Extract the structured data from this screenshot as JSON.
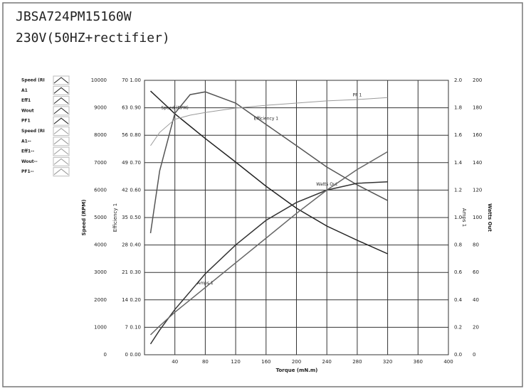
{
  "chart_data": {
    "type": "line",
    "title": "JBSA724PM15160W",
    "subtitle": "230V(50HZ+rectifier)",
    "xlabel": "Torque (mN.m)",
    "xlim": [
      0,
      400
    ],
    "xticks": [
      40,
      80,
      120,
      160,
      200,
      240,
      280,
      320,
      360,
      400
    ],
    "grid": true,
    "y_axes": [
      {
        "label": "Speed (RPM)",
        "ylim": [
          0,
          10000
        ],
        "yticks": [
          0,
          1000,
          2000,
          3000,
          4000,
          5000,
          6000,
          7000,
          8000,
          9000,
          10000
        ]
      },
      {
        "ylim": [
          0,
          70
        ],
        "yticks": [
          0,
          7,
          14,
          21,
          28,
          35,
          42,
          49,
          56,
          63,
          70
        ]
      },
      {
        "label": "Efficiency 1",
        "ylim": [
          0,
          1
        ],
        "yticks": [
          {
            "value": 0,
            "label": "0.00"
          },
          {
            "value": 0.1,
            "label": "0.10"
          },
          {
            "value": 0.2,
            "label": "0.20"
          },
          {
            "value": 0.3,
            "label": "0.30"
          },
          {
            "value": 0.4,
            "label": "0.40"
          },
          {
            "value": 0.5,
            "label": "0.50"
          },
          {
            "value": 0.6,
            "label": "0.60"
          },
          {
            "value": 0.7,
            "label": "0.70"
          },
          {
            "value": 0.8,
            "label": "0.80"
          },
          {
            "value": 0.9,
            "label": "0.90"
          },
          {
            "value": 1,
            "label": "1.00"
          }
        ]
      },
      {
        "label": "Amps 1",
        "ylim": [
          0,
          2
        ],
        "yticks": [
          {
            "value": 0,
            "label": "0.0"
          },
          0.2,
          0.4,
          0.6,
          0.8,
          {
            "value": 1,
            "label": "1.0"
          },
          1.2,
          1.4,
          1.6,
          1.8,
          {
            "value": 2,
            "label": "2.0"
          }
        ]
      },
      {
        "label": "Watts Out",
        "ylim": [
          0,
          200
        ],
        "yticks": [
          0,
          20,
          40,
          60,
          80,
          100,
          120,
          140,
          160,
          180,
          200
        ]
      }
    ],
    "x": [
      8,
      20,
      40,
      60,
      80,
      120,
      160,
      200,
      240,
      280,
      320
    ],
    "series": [
      {
        "name": "Speed (RPM)",
        "axis": 0,
        "color": "#222222",
        "values": [
          9610,
          9300,
          8780,
          8330,
          7880,
          7020,
          6140,
          5340,
          4690,
          4170,
          3680
        ]
      },
      {
        "name": "Efficiency 1",
        "axis": 2,
        "color": "#555555",
        "values": [
          0.443,
          0.67,
          0.88,
          0.948,
          0.958,
          0.917,
          0.839,
          0.762,
          0.684,
          0.619,
          0.562
        ]
      },
      {
        "name": "PF 1",
        "axis": 2,
        "color": "#9a9a9a",
        "values": [
          0.762,
          0.81,
          0.858,
          0.873,
          0.883,
          0.899,
          0.909,
          0.917,
          0.925,
          0.93,
          0.937
        ]
      },
      {
        "name": "Watts Out",
        "axis": 4,
        "color": "#333333",
        "values": [
          7.8,
          18,
          33,
          46,
          59,
          80,
          98,
          111,
          120,
          125,
          126
        ]
      },
      {
        "name": "Amps 1",
        "axis": 3,
        "color": "#666666",
        "values": [
          0.145,
          0.21,
          0.31,
          0.4,
          0.49,
          0.67,
          0.85,
          1.03,
          1.2,
          1.35,
          1.48
        ]
      }
    ],
    "legend": [
      "Speed (RI",
      "A1",
      "Eff1",
      "Wout",
      "PF1",
      "Speed (RI",
      "A1--",
      "Eff1--",
      "Wout--",
      "PF1--"
    ]
  }
}
